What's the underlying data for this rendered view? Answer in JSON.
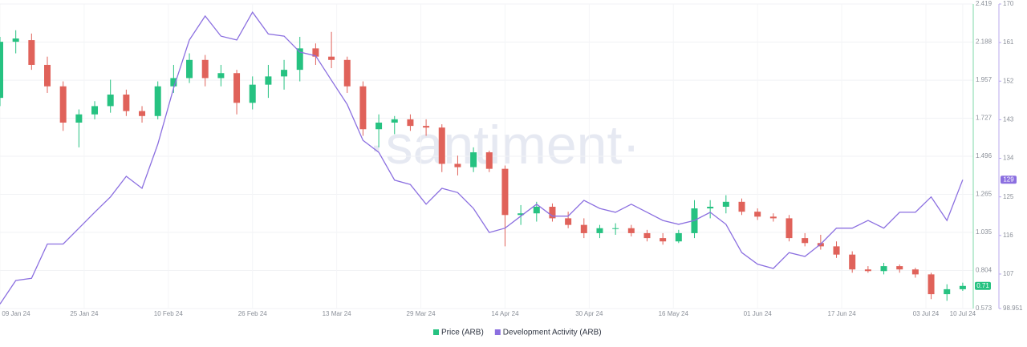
{
  "chart_data": {
    "type": "candlestick",
    "watermark": "·santiment·",
    "x": [
      "2024-01-09",
      "2024-01-12",
      "2024-01-15",
      "2024-01-18",
      "2024-01-21",
      "2024-01-24",
      "2024-01-27",
      "2024-01-30",
      "2024-02-02",
      "2024-02-05",
      "2024-02-08",
      "2024-02-11",
      "2024-02-14",
      "2024-02-17",
      "2024-02-20",
      "2024-02-23",
      "2024-02-26",
      "2024-02-29",
      "2024-03-03",
      "2024-03-06",
      "2024-03-09",
      "2024-03-12",
      "2024-03-15",
      "2024-03-18",
      "2024-03-21",
      "2024-03-24",
      "2024-03-27",
      "2024-03-30",
      "2024-04-02",
      "2024-04-05",
      "2024-04-08",
      "2024-04-11",
      "2024-04-14",
      "2024-04-17",
      "2024-04-20",
      "2024-04-23",
      "2024-04-26",
      "2024-04-29",
      "2024-05-02",
      "2024-05-05",
      "2024-05-08",
      "2024-05-11",
      "2024-05-14",
      "2024-05-17",
      "2024-05-20",
      "2024-05-23",
      "2024-05-26",
      "2024-05-29",
      "2024-06-01",
      "2024-06-04",
      "2024-06-07",
      "2024-06-10",
      "2024-06-13",
      "2024-06-16",
      "2024-06-19",
      "2024-06-22",
      "2024-06-25",
      "2024-06-28",
      "2024-07-01",
      "2024-07-04",
      "2024-07-07",
      "2024-07-10"
    ],
    "series": [
      {
        "name": "Price (ARB)",
        "color": "#26c281",
        "down_color": "#e0625a",
        "open": [
          1.85,
          2.19,
          2.2,
          2.05,
          1.92,
          1.7,
          1.75,
          1.8,
          1.87,
          1.77,
          1.74,
          1.92,
          1.97,
          2.08,
          1.97,
          2.0,
          1.82,
          1.93,
          1.98,
          2.02,
          2.15,
          2.1,
          2.08,
          1.92,
          1.66,
          1.7,
          1.72,
          1.68,
          1.67,
          1.45,
          1.43,
          1.52,
          1.42,
          1.14,
          1.15,
          1.19,
          1.12,
          1.08,
          1.03,
          1.06,
          1.06,
          1.03,
          1.0,
          0.98,
          1.03,
          1.18,
          1.19,
          1.22,
          1.16,
          1.13,
          1.12,
          1.0,
          0.97,
          0.95,
          0.9,
          0.81,
          0.8,
          0.83,
          0.81,
          0.78,
          0.66,
          0.69
        ],
        "high": [
          2.22,
          2.26,
          2.24,
          2.1,
          1.95,
          1.78,
          1.83,
          1.96,
          1.9,
          1.8,
          1.95,
          2.05,
          2.12,
          2.11,
          2.05,
          2.02,
          1.98,
          2.05,
          2.08,
          2.22,
          2.18,
          2.25,
          2.1,
          1.95,
          1.75,
          1.74,
          1.75,
          1.72,
          1.69,
          1.5,
          1.55,
          1.53,
          1.44,
          1.2,
          1.22,
          1.21,
          1.16,
          1.12,
          1.08,
          1.09,
          1.08,
          1.05,
          1.03,
          1.05,
          1.23,
          1.23,
          1.26,
          1.24,
          1.18,
          1.15,
          1.14,
          1.03,
          1.02,
          0.98,
          0.92,
          0.83,
          0.85,
          0.84,
          0.82,
          0.79,
          0.72,
          0.73
        ],
        "low": [
          1.8,
          2.12,
          2.02,
          1.88,
          1.65,
          1.55,
          1.72,
          1.76,
          1.74,
          1.7,
          1.72,
          1.88,
          1.94,
          1.92,
          1.92,
          1.75,
          1.78,
          1.85,
          1.9,
          1.95,
          2.05,
          2.03,
          1.88,
          1.62,
          1.55,
          1.63,
          1.65,
          1.62,
          1.4,
          1.38,
          1.4,
          1.4,
          0.95,
          1.08,
          1.1,
          1.1,
          1.06,
          1.0,
          1.0,
          1.02,
          1.01,
          0.98,
          0.96,
          0.97,
          1.0,
          1.12,
          1.15,
          1.14,
          1.11,
          1.1,
          0.98,
          0.95,
          0.93,
          0.88,
          0.79,
          0.79,
          0.78,
          0.79,
          0.76,
          0.63,
          0.62,
          0.68
        ],
        "close": [
          2.19,
          2.21,
          2.05,
          1.92,
          1.7,
          1.75,
          1.8,
          1.87,
          1.77,
          1.74,
          1.92,
          1.97,
          2.08,
          1.97,
          2.0,
          1.82,
          1.93,
          1.98,
          2.02,
          2.15,
          2.1,
          2.08,
          1.92,
          1.66,
          1.7,
          1.72,
          1.68,
          1.67,
          1.45,
          1.43,
          1.52,
          1.42,
          1.14,
          1.15,
          1.19,
          1.12,
          1.08,
          1.03,
          1.06,
          1.06,
          1.03,
          1.0,
          0.98,
          1.03,
          1.18,
          1.19,
          1.22,
          1.16,
          1.13,
          1.12,
          1.0,
          0.97,
          0.95,
          0.9,
          0.81,
          0.8,
          0.83,
          0.81,
          0.78,
          0.66,
          0.69,
          0.71
        ]
      },
      {
        "name": "Development Activity (ARB)",
        "type": "line",
        "color": "#8b6fe0",
        "axis": "y2",
        "values": [
          100,
          105.5,
          106,
          114,
          114,
          117.7,
          121.4,
          125,
          129.8,
          127,
          137.3,
          150.4,
          161.6,
          167.2,
          162.5,
          161.6,
          168.1,
          163,
          162.5,
          158.8,
          157.9,
          152.2,
          146.6,
          138.2,
          135.4,
          128.9,
          127.9,
          123.3,
          127,
          126,
          122.3,
          116.7,
          117.7,
          120.5,
          123.3,
          120.5,
          120.5,
          124.2,
          122.3,
          121.4,
          123.3,
          121.4,
          119.5,
          118.6,
          119.5,
          121.4,
          118.6,
          112,
          109.3,
          108.3,
          112,
          111.1,
          114,
          117.7,
          117.7,
          119.5,
          117.7,
          121.4,
          121.4,
          125,
          119.5,
          129
        ]
      }
    ],
    "xlim": [
      "2024-01-09",
      "2024-07-12"
    ],
    "xticks": [
      {
        "value": "2024-01-09",
        "label": "09 Jan 24"
      },
      {
        "value": "2024-01-25",
        "label": "25 Jan 24"
      },
      {
        "value": "2024-02-10",
        "label": "10 Feb 24"
      },
      {
        "value": "2024-02-26",
        "label": "26 Feb 24"
      },
      {
        "value": "2024-03-13",
        "label": "13 Mar 24"
      },
      {
        "value": "2024-03-29",
        "label": "29 Mar 24"
      },
      {
        "value": "2024-04-14",
        "label": "14 Apr 24"
      },
      {
        "value": "2024-04-30",
        "label": "30 Apr 24"
      },
      {
        "value": "2024-05-16",
        "label": "16 May 24"
      },
      {
        "value": "2024-06-01",
        "label": "01 Jun 24"
      },
      {
        "value": "2024-06-17",
        "label": "17 Jun 24"
      },
      {
        "value": "2024-07-03",
        "label": "03 Jul 24"
      },
      {
        "value": "2024-07-10",
        "label": "10 Jul 24"
      }
    ],
    "ylim": [
      0.573,
      2.419
    ],
    "yticks": [
      0.573,
      0.804,
      1.035,
      1.265,
      1.496,
      1.727,
      1.957,
      2.188,
      2.419
    ],
    "y2lim": [
      98.951,
      170
    ],
    "y2ticks": [
      98.951,
      107,
      116,
      125,
      134,
      143,
      152,
      161,
      170
    ],
    "annotations": [
      {
        "text": "0.71",
        "axis": "y",
        "value": 0.71,
        "color": "#26c281"
      },
      {
        "text": "129",
        "axis": "y2",
        "value": 129,
        "color": "#8b6fe0"
      }
    ],
    "grid": true,
    "legend": "bottom"
  }
}
